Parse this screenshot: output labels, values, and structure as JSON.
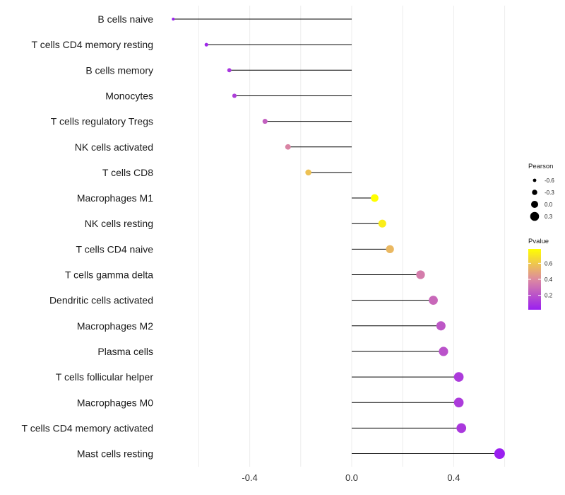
{
  "chart_data": {
    "type": "lollipop",
    "title": "",
    "xlabel": "",
    "ylabel": "",
    "xlim": [
      -0.7,
      0.6
    ],
    "x_ticks": [
      -0.4,
      0.0,
      0.4
    ],
    "x_tick_labels": [
      "-0.4",
      "0.0",
      "0.4"
    ],
    "grid": "vertical",
    "items": [
      {
        "label": "B cells naive",
        "pearson": -0.7,
        "pvalue": 0.02
      },
      {
        "label": "T cells CD4 memory resting",
        "pearson": -0.57,
        "pvalue": 0.05
      },
      {
        "label": "B cells memory",
        "pearson": -0.48,
        "pvalue": 0.1
      },
      {
        "label": "Monocytes",
        "pearson": -0.46,
        "pvalue": 0.13
      },
      {
        "label": "T cells regulatory  Tregs ",
        "pearson": -0.34,
        "pvalue": 0.25
      },
      {
        "label": "NK cells activated",
        "pearson": -0.25,
        "pvalue": 0.38
      },
      {
        "label": "T cells CD8",
        "pearson": -0.17,
        "pvalue": 0.58
      },
      {
        "label": "Macrophages M1",
        "pearson": 0.09,
        "pvalue": 0.78
      },
      {
        "label": "NK cells resting",
        "pearson": 0.12,
        "pvalue": 0.72
      },
      {
        "label": "T cells CD4 naive",
        "pearson": 0.15,
        "pvalue": 0.55
      },
      {
        "label": "T cells gamma delta",
        "pearson": 0.27,
        "pvalue": 0.35
      },
      {
        "label": "Dendritic cells activated",
        "pearson": 0.32,
        "pvalue": 0.28
      },
      {
        "label": "Macrophages M2",
        "pearson": 0.35,
        "pvalue": 0.22
      },
      {
        "label": "Plasma cells",
        "pearson": 0.36,
        "pvalue": 0.2
      },
      {
        "label": "T cells follicular helper",
        "pearson": 0.42,
        "pvalue": 0.12
      },
      {
        "label": "Macrophages M0",
        "pearson": 0.42,
        "pvalue": 0.12
      },
      {
        "label": "T cells CD4 memory activated",
        "pearson": 0.43,
        "pvalue": 0.11
      },
      {
        "label": "Mast cells resting",
        "pearson": 0.58,
        "pvalue": 0.02
      }
    ],
    "legend": {
      "placement": "right",
      "size_title": "Pearson",
      "size_breaks": [
        -0.6,
        -0.3,
        0.0,
        0.3
      ],
      "size_labels": [
        "-0.6",
        "-0.3",
        "0.0",
        "0.3"
      ],
      "color_title": "Pvalue",
      "color_range": [
        0.02,
        0.78
      ],
      "color_breaks": [
        0.2,
        0.4,
        0.6
      ],
      "color_labels": [
        "0.2",
        "0.4",
        "0.6"
      ]
    },
    "colors": {
      "low": "#9a1ff0",
      "mid": "#dd8aa0",
      "high": "#ffff00",
      "segment": "#000000",
      "grid": "#ececec"
    }
  }
}
